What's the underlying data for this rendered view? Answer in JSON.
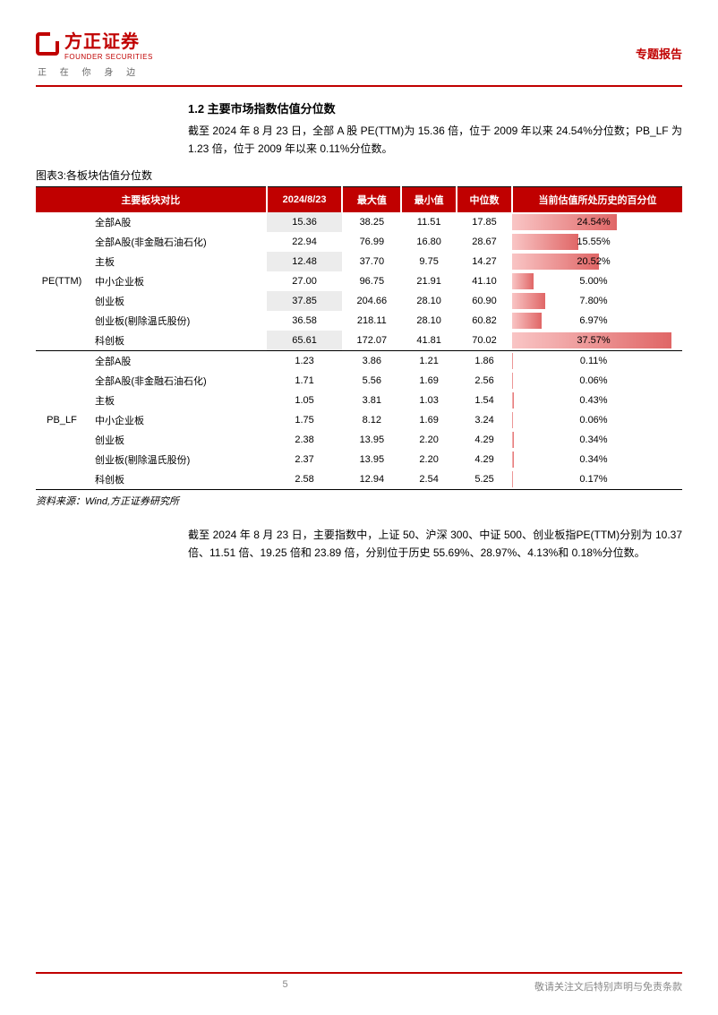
{
  "header": {
    "logo_cn": "方正证券",
    "logo_en": "FOUNDER SECURITIES",
    "tagline": "正 在 你 身 边",
    "report_type": "专题报告"
  },
  "section": {
    "title": "1.2 主要市场指数估值分位数",
    "para1": "截至 2024 年 8 月 23 日，全部 A 股 PE(TTM)为 15.36 倍，位于 2009 年以来 24.54%分位数；PB_LF 为 1.23 倍，位于 2009 年以来 0.11%分位数。",
    "caption": "图表3:各板块估值分位数",
    "para2": "截至 2024 年 8 月 23 日，主要指数中，上证 50、沪深 300、中证 500、创业板指PE(TTM)分别为 10.37 倍、11.51 倍、19.25 倍和 23.89 倍，分别位于历史 55.69%、28.97%、4.13%和 0.18%分位数。"
  },
  "table": {
    "headers": [
      "主要板块对比",
      "2024/8/23",
      "最大值",
      "最小值",
      "中位数",
      "当前估值所处历史的百分位"
    ],
    "groups": [
      {
        "label": "PE(TTM)",
        "rows": [
          {
            "name": "全部A股",
            "cur": "15.36",
            "max": "38.25",
            "min": "11.51",
            "med": "17.85",
            "pct": 24.54,
            "shade": true
          },
          {
            "name": "全部A股(非金融石油石化)",
            "cur": "22.94",
            "max": "76.99",
            "min": "16.80",
            "med": "28.67",
            "pct": 15.55,
            "shade": false
          },
          {
            "name": "主板",
            "cur": "12.48",
            "max": "37.70",
            "min": "9.75",
            "med": "14.27",
            "pct": 20.52,
            "shade": true
          },
          {
            "name": "中小企业板",
            "cur": "27.00",
            "max": "96.75",
            "min": "21.91",
            "med": "41.10",
            "pct": 5.0,
            "shade": false
          },
          {
            "name": "创业板",
            "cur": "37.85",
            "max": "204.66",
            "min": "28.10",
            "med": "60.90",
            "pct": 7.8,
            "shade": true
          },
          {
            "name": "创业板(剔除温氏股份)",
            "cur": "36.58",
            "max": "218.11",
            "min": "28.10",
            "med": "60.82",
            "pct": 6.97,
            "shade": false
          },
          {
            "name": "科创板",
            "cur": "65.61",
            "max": "172.07",
            "min": "41.81",
            "med": "70.02",
            "pct": 37.57,
            "shade": true
          }
        ]
      },
      {
        "label": "PB_LF",
        "rows": [
          {
            "name": "全部A股",
            "cur": "1.23",
            "max": "3.86",
            "min": "1.21",
            "med": "1.86",
            "pct": 0.11,
            "shade": false
          },
          {
            "name": "全部A股(非金融石油石化)",
            "cur": "1.71",
            "max": "5.56",
            "min": "1.69",
            "med": "2.56",
            "pct": 0.06,
            "shade": false
          },
          {
            "name": "主板",
            "cur": "1.05",
            "max": "3.81",
            "min": "1.03",
            "med": "1.54",
            "pct": 0.43,
            "shade": false
          },
          {
            "name": "中小企业板",
            "cur": "1.75",
            "max": "8.12",
            "min": "1.69",
            "med": "3.24",
            "pct": 0.06,
            "shade": false
          },
          {
            "name": "创业板",
            "cur": "2.38",
            "max": "13.95",
            "min": "2.20",
            "med": "4.29",
            "pct": 0.34,
            "shade": false
          },
          {
            "name": "创业板(剔除温氏股份)",
            "cur": "2.37",
            "max": "13.95",
            "min": "2.20",
            "med": "4.29",
            "pct": 0.34,
            "shade": false
          },
          {
            "name": "科创板",
            "cur": "2.58",
            "max": "12.94",
            "min": "2.54",
            "med": "5.25",
            "pct": 0.17,
            "shade": false
          }
        ]
      }
    ],
    "source": "资料来源：Wind,方正证券研究所"
  },
  "footer": {
    "page": "5",
    "disclaimer": "敬请关注文后特别声明与免责条款"
  },
  "style": {
    "brand_color": "#c00000",
    "shade_color": "#ececec",
    "bar_max_pct": 40
  }
}
